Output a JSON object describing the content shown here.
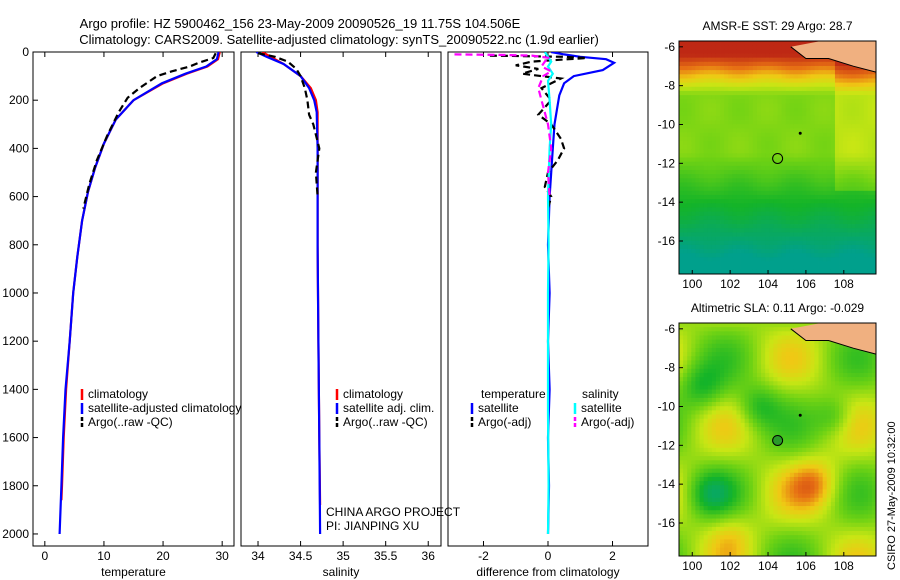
{
  "header": {
    "line1": "Argo profile: HZ 5900462_156 23-May-2009 20090526_19 11.75S 104.506E",
    "line2": "Climatology: CARS2009. Satellite-adjusted climatology: synTS_20090522.nc (1.9d earlier)"
  },
  "credit": "CSIRO 27-May-2009 10:32:00",
  "project": {
    "line1": "CHINA ARGO PROJECT",
    "line2": "PI: JIANPING XU"
  },
  "colors": {
    "clim": "#ff0000",
    "sat": "#0000ff",
    "argo": "#000000",
    "cyan": "#00ffff",
    "magenta": "#ff00ff"
  },
  "chart_data": [
    {
      "type": "line",
      "id": "temperature",
      "xlabel": "temperature",
      "xlim": [
        -2,
        32
      ],
      "ylim": [
        0,
        2050
      ],
      "xticks": [
        0,
        10,
        20,
        30
      ],
      "yticks": [
        0,
        200,
        400,
        600,
        800,
        1000,
        1200,
        1400,
        1600,
        1800,
        2000
      ],
      "legend": [
        "climatology",
        "satellite-adjusted climatology",
        "Argo(..raw -QC)"
      ],
      "series": [
        {
          "name": "climatology",
          "color": "#ff0000",
          "style": "solid",
          "points": [
            [
              29.6,
              0
            ],
            [
              29.3,
              30
            ],
            [
              27.5,
              60
            ],
            [
              24,
              90
            ],
            [
              20,
              130
            ],
            [
              15,
              200
            ],
            [
              12,
              280
            ],
            [
              10,
              380
            ],
            [
              8.5,
              480
            ],
            [
              7.3,
              580
            ],
            [
              6.3,
              700
            ],
            [
              5.5,
              850
            ],
            [
              4.8,
              1000
            ],
            [
              4.2,
              1200
            ],
            [
              3.6,
              1400
            ],
            [
              3.2,
              1600
            ],
            [
              2.9,
              1800
            ],
            [
              2.8,
              1860
            ]
          ]
        },
        {
          "name": "satellite-adjusted climatology",
          "color": "#0000ff",
          "style": "solid",
          "points": [
            [
              29.4,
              0
            ],
            [
              29.1,
              30
            ],
            [
              27.3,
              60
            ],
            [
              23.8,
              90
            ],
            [
              19.8,
              130
            ],
            [
              15,
              200
            ],
            [
              12,
              280
            ],
            [
              10,
              380
            ],
            [
              8.5,
              480
            ],
            [
              7.3,
              580
            ],
            [
              6.3,
              700
            ],
            [
              5.5,
              850
            ],
            [
              4.8,
              1000
            ],
            [
              4.2,
              1200
            ],
            [
              3.5,
              1400
            ],
            [
              3.1,
              1600
            ],
            [
              2.8,
              1800
            ],
            [
              2.5,
              2000
            ]
          ]
        },
        {
          "name": "Argo(..raw -QC)",
          "color": "#000000",
          "style": "dashed",
          "points": [
            [
              28.9,
              5
            ],
            [
              28.5,
              25
            ],
            [
              26,
              45
            ],
            [
              24.5,
              60
            ],
            [
              21.5,
              80
            ],
            [
              19,
              100
            ],
            [
              16,
              150
            ],
            [
              14,
              190
            ],
            [
              12.5,
              250
            ],
            [
              10.5,
              350
            ],
            [
              8.8,
              450
            ],
            [
              7.5,
              550
            ],
            [
              6.5,
              650
            ]
          ]
        }
      ]
    },
    {
      "type": "line",
      "id": "salinity",
      "xlabel": "salinity",
      "xlim": [
        33.8,
        36.15
      ],
      "ylim": [
        0,
        2050
      ],
      "xticks": [
        34,
        34.5,
        35,
        35.5,
        36
      ],
      "legend": [
        "climatology",
        "satellite adj. clim.",
        "Argo(..raw -QC)"
      ],
      "series": [
        {
          "name": "climatology",
          "color": "#ff0000",
          "style": "solid",
          "points": [
            [
              34.05,
              0
            ],
            [
              34.15,
              20
            ],
            [
              34.3,
              50
            ],
            [
              34.5,
              100
            ],
            [
              34.62,
              150
            ],
            [
              34.68,
              200
            ],
            [
              34.7,
              250
            ],
            [
              34.7,
              400
            ],
            [
              34.7,
              800
            ],
            [
              34.71,
              1200
            ],
            [
              34.72,
              1600
            ],
            [
              34.73,
              1880
            ]
          ]
        },
        {
          "name": "satellite adj. clim.",
          "color": "#0000ff",
          "style": "solid",
          "points": [
            [
              33.98,
              0
            ],
            [
              34.1,
              20
            ],
            [
              34.3,
              50
            ],
            [
              34.5,
              100
            ],
            [
              34.6,
              150
            ],
            [
              34.66,
              200
            ],
            [
              34.69,
              250
            ],
            [
              34.7,
              400
            ],
            [
              34.7,
              800
            ],
            [
              34.71,
              1200
            ],
            [
              34.72,
              1600
            ],
            [
              34.73,
              2000
            ]
          ]
        },
        {
          "name": "Argo(..raw -QC)",
          "color": "#000000",
          "style": "dashed",
          "points": [
            [
              34.0,
              5
            ],
            [
              34.2,
              20
            ],
            [
              34.35,
              40
            ],
            [
              34.45,
              70
            ],
            [
              34.5,
              100
            ],
            [
              34.55,
              150
            ],
            [
              34.58,
              200
            ],
            [
              34.6,
              260
            ],
            [
              34.65,
              300
            ],
            [
              34.72,
              400
            ],
            [
              34.68,
              500
            ],
            [
              34.7,
              600
            ]
          ]
        }
      ]
    },
    {
      "type": "line",
      "id": "difference",
      "xlabel": "difference from climatology",
      "xlim": [
        -3.1,
        3.1
      ],
      "ylim": [
        0,
        2050
      ],
      "xticks": [
        -2,
        0,
        2
      ],
      "legend": [
        "temperature",
        "satellite",
        "Argo(-adj)",
        "salinity",
        "satellite",
        "Argo(-adj)"
      ],
      "series": [
        {
          "name": "temperature satellite",
          "color": "#0000ff",
          "style": "solid",
          "points": [
            [
              0.1,
              0
            ],
            [
              0.5,
              10
            ],
            [
              1.0,
              20
            ],
            [
              1.8,
              30
            ],
            [
              2.05,
              45
            ],
            [
              1.7,
              75
            ],
            [
              0.8,
              100
            ],
            [
              0.5,
              130
            ],
            [
              0.35,
              180
            ],
            [
              0.3,
              220
            ],
            [
              0.2,
              300
            ],
            [
              0.15,
              400
            ],
            [
              0.1,
              500
            ],
            [
              0.05,
              600
            ],
            [
              0.0,
              800
            ],
            [
              0.05,
              1000
            ],
            [
              0.0,
              1200
            ],
            [
              0.05,
              1400
            ],
            [
              0.0,
              1600
            ],
            [
              0.03,
              1800
            ],
            [
              0.0,
              2000
            ]
          ]
        },
        {
          "name": "temperature Argo(-adj)",
          "color": "#000000",
          "style": "dashed",
          "points": [
            [
              -1.8,
              15
            ],
            [
              0.5,
              20
            ],
            [
              1.2,
              25
            ],
            [
              -0.5,
              40
            ],
            [
              -1.0,
              55
            ],
            [
              -0.3,
              70
            ],
            [
              -0.8,
              90
            ],
            [
              0.4,
              110
            ],
            [
              -0.2,
              150
            ],
            [
              0.1,
              200
            ],
            [
              -0.3,
              260
            ],
            [
              0.1,
              300
            ],
            [
              0.4,
              360
            ],
            [
              0.5,
              400
            ],
            [
              0.3,
              450
            ],
            [
              0.0,
              500
            ],
            [
              -0.1,
              560
            ],
            [
              0.1,
              600
            ],
            [
              0.0,
              650
            ]
          ]
        },
        {
          "name": "salinity satellite",
          "color": "#00ffff",
          "style": "solid",
          "points": [
            [
              -0.1,
              0
            ],
            [
              0.0,
              20
            ],
            [
              0.1,
              40
            ],
            [
              0.0,
              60
            ],
            [
              0.15,
              90
            ],
            [
              0.0,
              120
            ],
            [
              0.05,
              200
            ],
            [
              0.1,
              300
            ],
            [
              0.05,
              400
            ],
            [
              0.0,
              600
            ],
            [
              0.02,
              800
            ],
            [
              0.0,
              1000
            ],
            [
              0.0,
              1500
            ],
            [
              0.02,
              1800
            ],
            [
              0.0,
              2000
            ]
          ]
        },
        {
          "name": "salinity Argo(-adj)",
          "color": "#ff00ff",
          "style": "dashed",
          "points": [
            [
              -2.9,
              10
            ],
            [
              -1.5,
              12
            ],
            [
              -0.5,
              15
            ],
            [
              0.05,
              25
            ],
            [
              -0.1,
              40
            ],
            [
              -0.2,
              60
            ],
            [
              0.1,
              80
            ],
            [
              -0.15,
              100
            ],
            [
              -0.3,
              150
            ],
            [
              -0.2,
              200
            ],
            [
              0.0,
              300
            ],
            [
              0.1,
              400
            ],
            [
              0.0,
              500
            ],
            [
              0.05,
              600
            ]
          ]
        }
      ]
    },
    {
      "type": "heatmap",
      "id": "sst_map",
      "title": "AMSR-E SST: 29 Argo: 28.7",
      "xticks": [
        100,
        102,
        104,
        106,
        108
      ],
      "yticks": [
        -6,
        -8,
        -10,
        -12,
        -14,
        -16
      ],
      "xlim": [
        99.3,
        109.7
      ],
      "ylim": [
        -17.7,
        -5.7
      ],
      "marker": [
        104.506,
        -11.75
      ]
    },
    {
      "type": "heatmap",
      "id": "sla_map",
      "title": "Altimetric SLA: 0.11 Argo: -0.029",
      "xticks": [
        100,
        102,
        104,
        106,
        108
      ],
      "yticks": [
        -6,
        -8,
        -10,
        -12,
        -14,
        -16
      ],
      "xlim": [
        99.3,
        109.7
      ],
      "ylim": [
        -17.7,
        -5.7
      ],
      "marker": [
        104.506,
        -11.75
      ]
    }
  ]
}
